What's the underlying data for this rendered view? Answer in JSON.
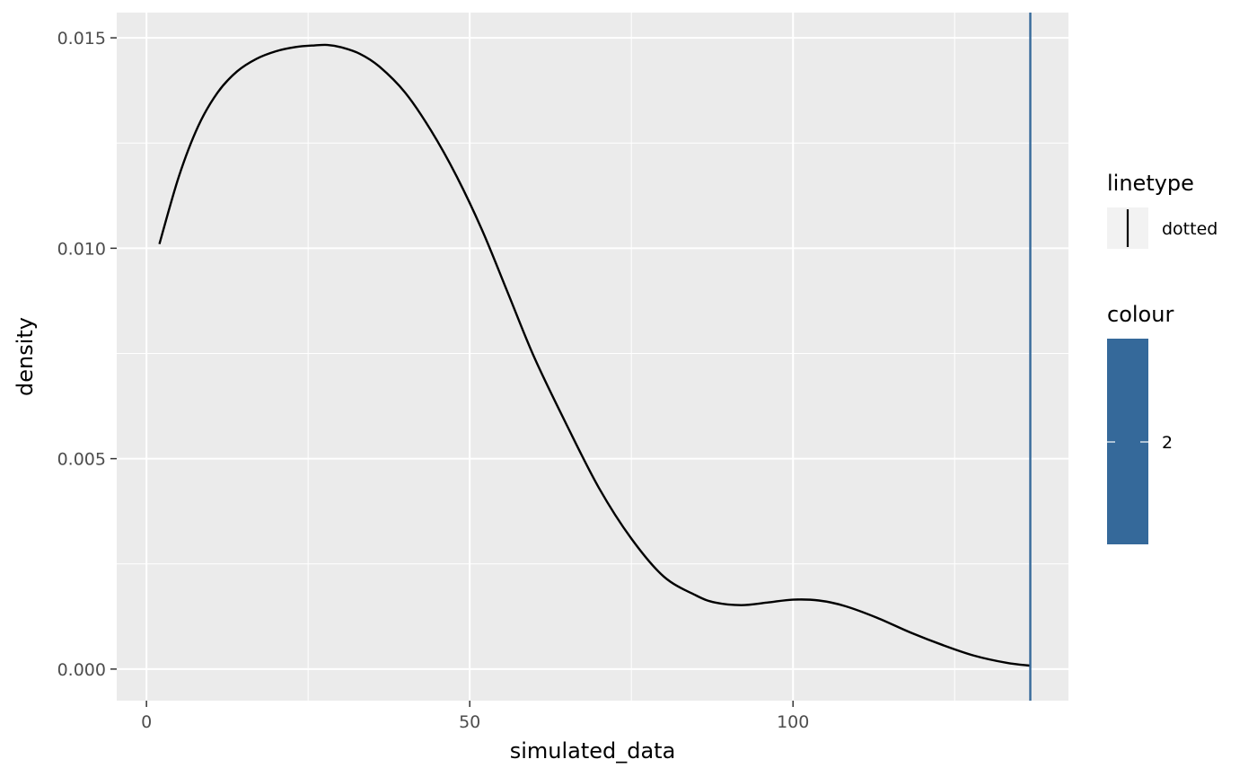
{
  "chart_data": {
    "type": "line",
    "title": "",
    "xlabel": "simulated_data",
    "ylabel": "density",
    "xlim": [
      -4.6,
      142.6
    ],
    "ylim": [
      -0.00075,
      0.0156
    ],
    "x_ticks": [
      0,
      50,
      100
    ],
    "x_tick_labels": [
      "0",
      "50",
      "100"
    ],
    "x_minor_ticks": [
      25,
      75,
      125
    ],
    "y_ticks": [
      0.0,
      0.005,
      0.01,
      0.015
    ],
    "y_tick_labels": [
      "0.000",
      "0.005",
      "0.010",
      "0.015"
    ],
    "y_minor_ticks": [
      0.0025,
      0.0075,
      0.0125
    ],
    "grid": true,
    "series": [
      {
        "name": "density",
        "color": "#000000",
        "x": [
          2,
          5,
          8,
          11,
          14,
          17,
          20,
          23,
          26,
          28,
          30,
          33,
          36,
          40,
          44,
          48,
          52,
          56,
          60,
          65,
          70,
          75,
          80,
          85,
          88,
          92,
          96,
          100,
          104,
          108,
          113,
          118,
          123,
          128,
          133,
          136.7
        ],
        "y": [
          0.0101,
          0.0117,
          0.0129,
          0.0137,
          0.0142,
          0.0145,
          0.01468,
          0.01478,
          0.01482,
          0.01483,
          0.01478,
          0.01462,
          0.01432,
          0.0137,
          0.0128,
          0.0117,
          0.0104,
          0.0089,
          0.0074,
          0.0058,
          0.0043,
          0.0031,
          0.0022,
          0.00175,
          0.00158,
          0.00152,
          0.00158,
          0.00165,
          0.00163,
          0.0015,
          0.00122,
          0.00088,
          0.00058,
          0.00032,
          0.00015,
          8e-05
        ]
      }
    ],
    "vline": {
      "x": 136.7,
      "color": "#35699A"
    },
    "legends": [
      {
        "title": "linetype",
        "entries": [
          {
            "label": "dotted",
            "color": "#000000"
          }
        ]
      },
      {
        "title": "colour",
        "entries": [
          {
            "label": "2",
            "color": "#35699A"
          }
        ]
      }
    ]
  }
}
